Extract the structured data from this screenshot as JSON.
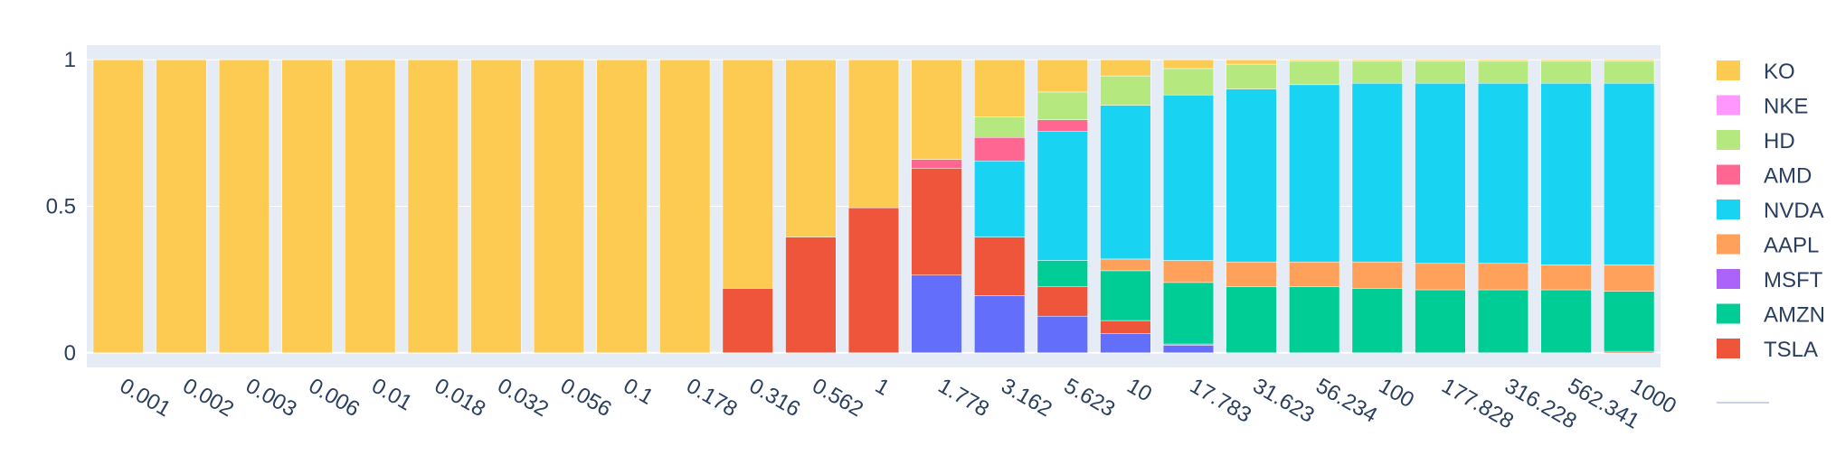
{
  "chart_data": {
    "type": "bar",
    "barmode": "stack",
    "title": "",
    "xlabel": "",
    "ylabel": "",
    "ylim": [
      -0.05,
      1.05
    ],
    "yticks": [
      "0",
      "0.5",
      "1"
    ],
    "grid": true,
    "legend_position": "right",
    "categories": [
      "0.001",
      "0.002",
      "0.003",
      "0.006",
      "0.01",
      "0.018",
      "0.032",
      "0.056",
      "0.1",
      "0.178",
      "0.316",
      "0.562",
      "1",
      "1.778",
      "3.162",
      "5.623",
      "10",
      "17.783",
      "31.623",
      "56.234",
      "100",
      "177.828",
      "316.228",
      "562.341",
      "1000"
    ],
    "series": [
      {
        "name": "",
        "color": "#636efa",
        "values": [
          0,
          0,
          0,
          0,
          0,
          0,
          0,
          0,
          0,
          0,
          0,
          0,
          0,
          0.265,
          0.195,
          0.125,
          0.065,
          0.025,
          0,
          0,
          0,
          0,
          0,
          0,
          0
        ]
      },
      {
        "name": "MSFT",
        "color": "#ab63fa",
        "values": [
          0,
          0,
          0,
          0,
          0,
          0,
          0,
          0,
          0,
          0,
          0,
          0,
          0,
          0,
          0,
          0,
          0,
          0.005,
          0,
          0,
          0,
          0,
          0,
          0,
          0
        ]
      },
      {
        "name": "TSLA",
        "color": "#ef553b",
        "values": [
          0,
          0,
          0,
          0,
          0,
          0,
          0,
          0,
          0,
          0,
          0.22,
          0.395,
          0.495,
          0.365,
          0.2,
          0.1,
          0.045,
          0,
          0,
          0,
          0,
          0,
          0,
          0,
          0.005
        ]
      },
      {
        "name": "AMZN",
        "color": "#00cc96",
        "values": [
          0,
          0,
          0,
          0,
          0,
          0,
          0,
          0,
          0,
          0,
          0,
          0,
          0,
          0,
          0,
          0.09,
          0.17,
          0.21,
          0.225,
          0.225,
          0.22,
          0.215,
          0.215,
          0.215,
          0.205
        ]
      },
      {
        "name": "AAPL",
        "color": "#ffa15a",
        "values": [
          0,
          0,
          0,
          0,
          0,
          0,
          0,
          0,
          0,
          0,
          0,
          0,
          0,
          0,
          0,
          0,
          0.04,
          0.075,
          0.085,
          0.085,
          0.09,
          0.09,
          0.09,
          0.085,
          0.09
        ]
      },
      {
        "name": "NVDA",
        "color": "#19d3f3",
        "values": [
          0,
          0,
          0,
          0,
          0,
          0,
          0,
          0,
          0,
          0,
          0,
          0,
          0,
          0,
          0.26,
          0.44,
          0.525,
          0.565,
          0.59,
          0.605,
          0.61,
          0.615,
          0.615,
          0.62,
          0.62
        ]
      },
      {
        "name": "AMD",
        "color": "#ff6692",
        "values": [
          0,
          0,
          0,
          0,
          0,
          0,
          0,
          0,
          0,
          0,
          0,
          0,
          0,
          0.03,
          0.08,
          0.04,
          0,
          0,
          0,
          0,
          0,
          0,
          0,
          0,
          0
        ]
      },
      {
        "name": "HD",
        "color": "#b6e880",
        "values": [
          0,
          0,
          0,
          0,
          0,
          0,
          0,
          0,
          0,
          0,
          0,
          0,
          0,
          0,
          0.07,
          0.095,
          0.1,
          0.09,
          0.085,
          0.08,
          0.075,
          0.075,
          0.075,
          0.075,
          0.075
        ]
      },
      {
        "name": "NKE",
        "color": "#ff97ff",
        "values": [
          0,
          0,
          0,
          0,
          0,
          0,
          0,
          0,
          0,
          0,
          0,
          0,
          0,
          0,
          0,
          0,
          0,
          0,
          0,
          0,
          0,
          0,
          0,
          0,
          0
        ]
      },
      {
        "name": "KO",
        "color": "#fecb52",
        "values": [
          1,
          1,
          1,
          1,
          1,
          1,
          1,
          1,
          1,
          1,
          0.78,
          0.605,
          0.505,
          0.34,
          0.195,
          0.11,
          0.055,
          0.03,
          0.015,
          0.005,
          0.005,
          0.005,
          0.005,
          0.005,
          0.005
        ]
      }
    ],
    "legend": [
      "KO",
      "NKE",
      "HD",
      "AMD",
      "NVDA",
      "AAPL",
      "MSFT",
      "AMZN",
      "TSLA"
    ]
  },
  "colors": {
    "plot_background": "#e5ecf6",
    "grid": "#ffffff",
    "text": "#2a3f5f"
  }
}
